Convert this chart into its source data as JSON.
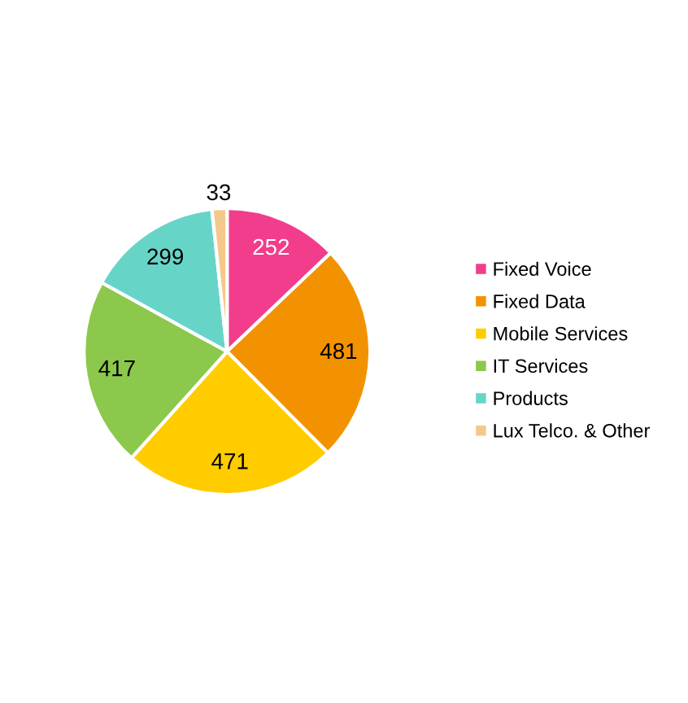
{
  "chart_data": {
    "type": "pie",
    "categories": [
      "Fixed Voice",
      "Fixed Data",
      "Mobile Services",
      "IT Services",
      "Products",
      "Lux Telco. & Other"
    ],
    "values": [
      252,
      481,
      471,
      417,
      299,
      33
    ],
    "colors": [
      "#f23d8c",
      "#f39200",
      "#ffcc00",
      "#8cc84b",
      "#66d5c8",
      "#f3c98b"
    ],
    "data_labels": true,
    "legend": "right"
  }
}
